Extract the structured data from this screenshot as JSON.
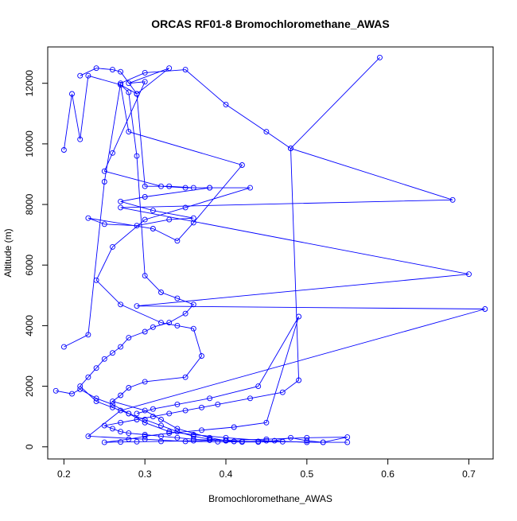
{
  "chart_data": {
    "type": "line",
    "title": "ORCAS RF01-8 Bromochloromethane_AWAS",
    "xlabel": "Bromochloromethane_AWAS",
    "ylabel": "Altitude (m)",
    "xlim": [
      0.18,
      0.73
    ],
    "ylim": [
      -400,
      13200
    ],
    "x_ticks": [
      0.2,
      0.3,
      0.4,
      0.5,
      0.6,
      0.7
    ],
    "x_tick_labels": [
      "0.2",
      "0.3",
      "0.4",
      "0.5",
      "0.6",
      "0.7"
    ],
    "y_ticks": [
      0,
      2000,
      4000,
      6000,
      8000,
      10000,
      12000
    ],
    "y_tick_labels": [
      "0",
      "2000",
      "4000",
      "6000",
      "8000",
      "10000",
      "12000"
    ],
    "grid": false,
    "marker": "open-circle",
    "color": "#0000ff",
    "series": [
      {
        "x": [
          0.22,
          0.24,
          0.26,
          0.27,
          0.29,
          0.33,
          0.28,
          0.3,
          0.26,
          0.25,
          0.32,
          0.35,
          0.38,
          0.3,
          0.27,
          0.31,
          0.36,
          0.33,
          0.29,
          0.25,
          0.23,
          0.31,
          0.34,
          0.36,
          0.42,
          0.28,
          0.27,
          0.29,
          0.3,
          0.33,
          0.36,
          0.38,
          0.43,
          0.35,
          0.3,
          0.26,
          0.24,
          0.27,
          0.32,
          0.34,
          0.36,
          0.37,
          0.35,
          0.3,
          0.28,
          0.27,
          0.26,
          0.3,
          0.32,
          0.34,
          0.38,
          0.4,
          0.41,
          0.44,
          0.46,
          0.48,
          0.5,
          0.52,
          0.55,
          0.5,
          0.45,
          0.4,
          0.36,
          0.33,
          0.3,
          0.28,
          0.26,
          0.24,
          0.22,
          0.21,
          0.19
        ],
        "y": [
          12250,
          12500,
          12450,
          12380,
          11650,
          12500,
          12000,
          12050,
          9700,
          9100,
          8600,
          8550,
          8550,
          8250,
          8100,
          7800,
          7550,
          7500,
          7300,
          7350,
          7550,
          7200,
          6800,
          7400,
          9300,
          10400,
          11950,
          11650,
          8600,
          8600,
          8550,
          8550,
          8550,
          7900,
          7500,
          6600,
          5500,
          4700,
          4100,
          4000,
          3900,
          3000,
          2300,
          2150,
          1950,
          1700,
          1500,
          1200,
          900,
          600,
          300,
          200,
          180,
          180,
          200,
          300,
          200,
          150,
          150,
          150,
          200,
          300,
          400,
          500,
          800,
          1100,
          1400,
          1600,
          1900,
          1750,
          1850
        ]
      },
      {
        "x": [
          0.2,
          0.21,
          0.22,
          0.23,
          0.27,
          0.28,
          0.29,
          0.3,
          0.32,
          0.34,
          0.36,
          0.35,
          0.33,
          0.31,
          0.3,
          0.28,
          0.27,
          0.26,
          0.25,
          0.24,
          0.23,
          0.22,
          0.24,
          0.26,
          0.28,
          0.3,
          0.32,
          0.34,
          0.36,
          0.38,
          0.4,
          0.41,
          0.42,
          0.4,
          0.38,
          0.36,
          0.34,
          0.32,
          0.3,
          0.28,
          0.27,
          0.26,
          0.25,
          0.27,
          0.29,
          0.31,
          0.33,
          0.35,
          0.37,
          0.39,
          0.43,
          0.47,
          0.49,
          0.48,
          0.45,
          0.4,
          0.35,
          0.3,
          0.27,
          0.25,
          0.23,
          0.2
        ],
        "y": [
          9800,
          11650,
          10150,
          12250,
          11950,
          11700,
          9600,
          5650,
          5100,
          4900,
          4700,
          4400,
          4100,
          3950,
          3800,
          3600,
          3300,
          3100,
          2900,
          2600,
          2300,
          2000,
          1500,
          1300,
          1100,
          900,
          700,
          500,
          350,
          250,
          200,
          180,
          180,
          200,
          220,
          250,
          300,
          350,
          400,
          450,
          500,
          600,
          700,
          800,
          900,
          1000,
          1100,
          1200,
          1300,
          1400,
          1600,
          1800,
          2200,
          9850,
          10400,
          11300,
          12450,
          12350,
          12000,
          8750,
          3700,
          3300
        ]
      },
      {
        "x": [
          0.59,
          0.48,
          0.68,
          0.27,
          0.7,
          0.29,
          0.72,
          0.27,
          0.23,
          0.3,
          0.35,
          0.39,
          0.42,
          0.44,
          0.47,
          0.52,
          0.55,
          0.5,
          0.45,
          0.4,
          0.36,
          0.32,
          0.29,
          0.27,
          0.25,
          0.28,
          0.3,
          0.33,
          0.37,
          0.41,
          0.45,
          0.49,
          0.44,
          0.38,
          0.34,
          0.31,
          0.29
        ],
        "y": [
          12850,
          9850,
          8150,
          7900,
          5700,
          4650,
          4550,
          1200,
          350,
          250,
          180,
          170,
          160,
          160,
          170,
          150,
          320,
          300,
          250,
          220,
          200,
          180,
          170,
          160,
          150,
          250,
          350,
          450,
          550,
          650,
          800,
          4300,
          2000,
          1600,
          1400,
          1250,
          1100
        ]
      }
    ]
  }
}
